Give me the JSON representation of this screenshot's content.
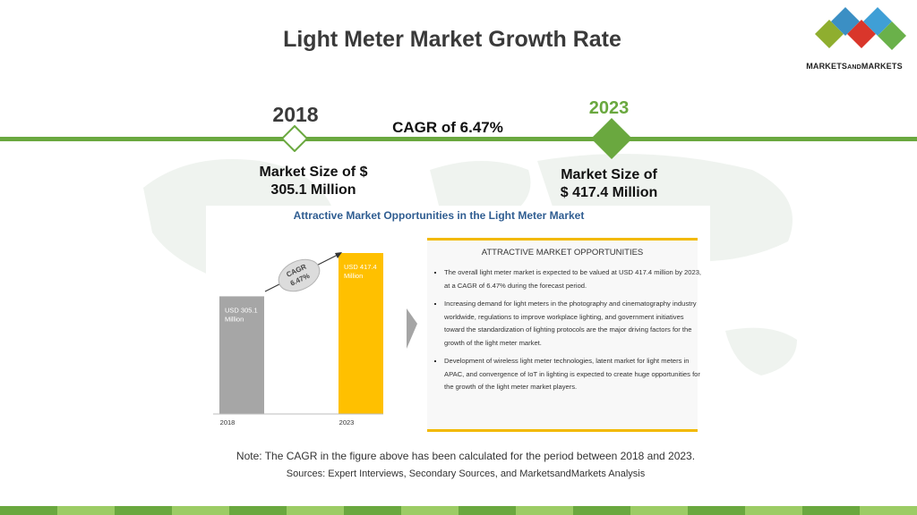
{
  "title": "Light Meter Market Growth Rate",
  "logo": {
    "text_main_1": "MARKETS",
    "text_small": "AND",
    "text_main_2": "MARKETS"
  },
  "timeline": {
    "year_start": "2018",
    "year_end": "2023",
    "cagr_label": "CAGR of 6.47%",
    "size_start": [
      "Market Size of $",
      "305.1 Million"
    ],
    "size_end": [
      "Market Size of",
      "$ 417.4 Million"
    ]
  },
  "panel": {
    "title": "Attractive Market Opportunities in the Light Meter Market",
    "opportunities_heading": "ATTRACTIVE MARKET OPPORTUNITIES",
    "opportunities": [
      "The overall light meter market is expected to be valued at USD 417.4 million by 2023, at a CAGR of 6.47% during the forecast period.",
      "Increasing demand for light meters in the photography and cinematography industry worldwide, regulations to improve workplace lighting, and government initiatives toward the standardization of lighting protocols are the major driving factors for the growth of the light meter market.",
      "Development of wireless light meter technologies, latent market for light meters in APAC, and convergence of IoT in lighting is expected to create huge opportunities for the growth of the light meter market players."
    ]
  },
  "chart_data": {
    "type": "bar",
    "categories": [
      "2018",
      "2023"
    ],
    "values": [
      305.1,
      417.4
    ],
    "data_labels": [
      [
        "USD 305.1",
        "Million"
      ],
      [
        "USD 417.4",
        "Million"
      ]
    ],
    "annotation": [
      "CAGR",
      "6.47%"
    ],
    "colors": [
      "#a6a6a6",
      "#ffc000"
    ],
    "ylim": [
      0,
      417.4
    ]
  },
  "note": "Note: The CAGR in the figure above has been calculated for the period between 2018 and 2023.",
  "sources": "Sources: Expert Interviews, Secondary Sources, and MarketsandMarkets Analysis",
  "colors": {
    "accent_green": "#6aa83f",
    "accent_yellow": "#ffc000",
    "title_blue": "#2f5d91"
  }
}
